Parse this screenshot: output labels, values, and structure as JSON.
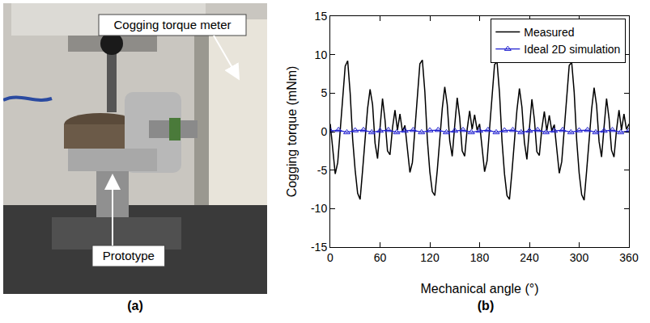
{
  "panel_labels": [
    "(a)",
    "(b)"
  ],
  "photo": {
    "labels": [
      "Cogging torque meter",
      "Prototype"
    ]
  },
  "chart_data": {
    "type": "line",
    "x_label": "Mechanical angle (°)",
    "y_label": "Cogging torque (mNm)",
    "xlim": [
      0,
      360
    ],
    "xticks": [
      0,
      60,
      120,
      180,
      240,
      300,
      360
    ],
    "ylim": [
      -15,
      15
    ],
    "yticks": [
      -15,
      -10,
      -5,
      0,
      5,
      10,
      15
    ],
    "grid": false,
    "legend": "upper right",
    "series": [
      {
        "name": "Measured",
        "color": "#000000",
        "line_style": "solid",
        "x": [
          0,
          3,
          6,
          9,
          12,
          15,
          18,
          21,
          24,
          27,
          30,
          33,
          36,
          39,
          42,
          45,
          48,
          51,
          54,
          57,
          60,
          63,
          66,
          69,
          72,
          75,
          78,
          81,
          84,
          87,
          90,
          93,
          96,
          99,
          102,
          105,
          108,
          111,
          114,
          117,
          120,
          123,
          126,
          129,
          132,
          135,
          138,
          141,
          144,
          147,
          150,
          153,
          156,
          159,
          162,
          165,
          168,
          171,
          174,
          177,
          180,
          183,
          186,
          189,
          192,
          195,
          198,
          201,
          204,
          207,
          210,
          213,
          216,
          219,
          222,
          225,
          228,
          231,
          234,
          237,
          240,
          243,
          246,
          249,
          252,
          255,
          258,
          261,
          264,
          267,
          270,
          273,
          276,
          279,
          282,
          285,
          288,
          291,
          294,
          297,
          300,
          303,
          306,
          309,
          312,
          315,
          318,
          321,
          324,
          327,
          330,
          333,
          336,
          339,
          342,
          345,
          348,
          351,
          354,
          357,
          360
        ],
        "values": [
          1.0,
          -2,
          -5.5,
          -4,
          0,
          4.5,
          8.5,
          9.2,
          5,
          -1,
          -5,
          -8,
          -8.8,
          -5,
          -0.5,
          3,
          5.5,
          3.5,
          -1.5,
          -3.5,
          0.5,
          4.3,
          1.5,
          -2.5,
          -3,
          0.5,
          2.8,
          0.2,
          2.3,
          0,
          0.8,
          -2.5,
          -5.3,
          -4,
          0.2,
          4.8,
          8.8,
          9.3,
          5.2,
          -1,
          -5.2,
          -7.8,
          -8.3,
          -5,
          -0.5,
          3,
          5.8,
          3.5,
          -1.2,
          -3.2,
          0.8,
          4.4,
          1.8,
          -2.5,
          -3.2,
          0.3,
          2.7,
          0.3,
          2.2,
          0.2,
          1.0,
          -2.2,
          -5.2,
          -3.8,
          0.3,
          4.6,
          8.7,
          9.1,
          5.0,
          -1.2,
          -5.5,
          -8.3,
          -8.8,
          -5.2,
          -0.8,
          2.8,
          5.6,
          3.2,
          -1.4,
          -3.6,
          0.4,
          4.2,
          1.6,
          -2.6,
          -3.1,
          0.4,
          2.6,
          0.1,
          2.1,
          0.1,
          0.9,
          -2.3,
          -5.4,
          -3.9,
          0.1,
          4.7,
          8.6,
          9.0,
          5.1,
          -1.1,
          -5.4,
          -8.2,
          -8.9,
          -5.1,
          -0.6,
          2.9,
          5.7,
          3.4,
          -1.3,
          -3.3,
          0.6,
          4.3,
          1.7,
          -2.4,
          -3.3,
          0.2,
          2.8,
          0.2,
          2.3,
          0.3,
          1.0
        ]
      },
      {
        "name": "Ideal 2D simulation",
        "color": "#1f1fd0",
        "marker": "triangle",
        "line_style": "solid",
        "x": [
          0,
          10,
          20,
          30,
          40,
          50,
          60,
          70,
          80,
          90,
          100,
          110,
          120,
          130,
          140,
          150,
          160,
          170,
          180,
          190,
          200,
          210,
          220,
          230,
          240,
          250,
          260,
          270,
          280,
          290,
          300,
          310,
          320,
          330,
          340,
          350,
          360
        ],
        "values": [
          0.1,
          0.2,
          -0.1,
          0.15,
          0.2,
          -0.1,
          0.1,
          0.2,
          -0.1,
          0.1,
          0.2,
          -0.1,
          0.15,
          0.2,
          -0.1,
          0.1,
          0.2,
          -0.1,
          0.1,
          0.2,
          -0.1,
          0.15,
          0.2,
          -0.1,
          0.1,
          0.2,
          -0.1,
          0.1,
          0.2,
          -0.1,
          0.15,
          0.2,
          -0.1,
          0.1,
          0.2,
          -0.1,
          0.1
        ]
      }
    ]
  }
}
